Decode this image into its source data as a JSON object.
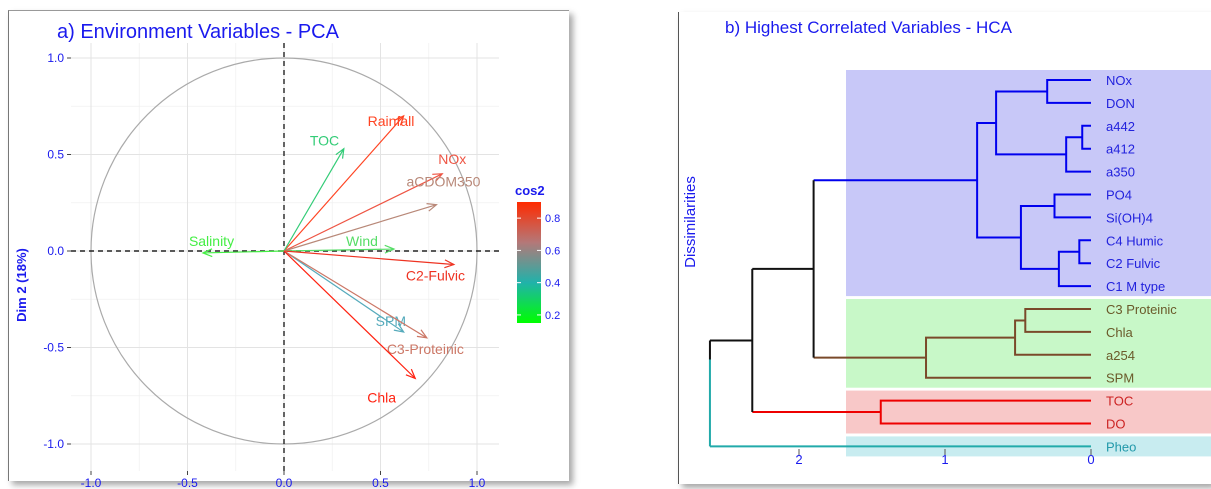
{
  "chart_data": [
    {
      "type": "scatter",
      "title": "a) Environment Variables - PCA",
      "ylabel": "Dim 2 (18%)",
      "xlabel": "",
      "xlim": [
        -1.0,
        1.0
      ],
      "ylim": [
        -1.0,
        1.0
      ],
      "x_ticks": [
        "-1.0",
        "-0.5",
        "0.0",
        "0.5",
        "1.0"
      ],
      "y_ticks": [
        "1.0",
        "0.5",
        "0.0",
        "-0.5",
        "-1.0"
      ],
      "grid": true,
      "legend": {
        "title": "cos2",
        "placement": "right",
        "ticks": [
          "0.8",
          "0.6",
          "0.4",
          "0.2"
        ],
        "range": [
          0.15,
          0.9
        ],
        "colors": [
          "#00ff00",
          "#20b2aa",
          "#b47878",
          "#ff2a00"
        ]
      },
      "vectors": [
        {
          "name": "Rainfall",
          "x": 0.62,
          "y": 0.7,
          "cos2": 0.88,
          "color": "#ff4422"
        },
        {
          "name": "TOC",
          "x": 0.31,
          "y": 0.53,
          "cos2": 0.38,
          "color": "#33cc77"
        },
        {
          "name": "NOx",
          "x": 0.82,
          "y": 0.4,
          "cos2": 0.84,
          "color": "#ee5544"
        },
        {
          "name": "aCDOM350",
          "x": 0.79,
          "y": 0.24,
          "cos2": 0.68,
          "color": "#b88878"
        },
        {
          "name": "Salinity",
          "x": -0.42,
          "y": -0.01,
          "cos2": 0.18,
          "color": "#44ee44"
        },
        {
          "name": "Wind",
          "x": 0.57,
          "y": 0.01,
          "cos2": 0.3,
          "color": "#55dd66"
        },
        {
          "name": "C2-Fulvic",
          "x": 0.88,
          "y": -0.07,
          "cos2": 0.86,
          "color": "#ee3322"
        },
        {
          "name": "SPM",
          "x": 0.62,
          "y": -0.42,
          "cos2": 0.55,
          "color": "#55aabb"
        },
        {
          "name": "C3-Proteinic",
          "x": 0.74,
          "y": -0.45,
          "cos2": 0.7,
          "color": "#cc7766"
        },
        {
          "name": "Chla",
          "x": 0.68,
          "y": -0.66,
          "cos2": 0.88,
          "color": "#ff2211"
        }
      ]
    },
    {
      "type": "dendrogram",
      "title": "b) Highest Correlated Variables - HCA",
      "ylabel": "Dissimilarities",
      "x_ticks": [
        "2",
        "1",
        "0"
      ],
      "leaves": [
        "NOx",
        "DON",
        "a442",
        "a412",
        "a350",
        "PO4",
        "Si(OH)4",
        "C4 Humic",
        "C2 Fulvic",
        "C1 M type",
        "C3 Proteinic",
        "Chla",
        "a254",
        "SPM",
        "TOC",
        "DO",
        "Pheo"
      ],
      "clusters": [
        {
          "members": [
            "NOx",
            "DON",
            "a442",
            "a412",
            "a350",
            "PO4",
            "Si(OH)4",
            "C4 Humic",
            "C2 Fulvic",
            "C1 M type"
          ],
          "line_color": "#0000ee",
          "box_color": "#c8c8f8",
          "text_color": "#2222dd"
        },
        {
          "members": [
            "C3 Proteinic",
            "Chla",
            "a254",
            "SPM"
          ],
          "line_color": "#7a4a2a",
          "box_color": "#c8f8c8",
          "text_color": "#6a5a2a"
        },
        {
          "members": [
            "TOC",
            "DO"
          ],
          "line_color": "#ee0000",
          "box_color": "#f8c8c8",
          "text_color": "#cc2222"
        },
        {
          "members": [
            "Pheo"
          ],
          "line_color": "#22aaaa",
          "box_color": "#c8ecf0",
          "text_color": "#2299aa"
        }
      ],
      "merges": [
        {
          "a": "NOx",
          "b": "DON",
          "height": 0.3
        },
        {
          "a": "a442",
          "b": "a412",
          "height": 0.06
        },
        {
          "a": "a442+a412",
          "b": "a350",
          "height": 0.17
        },
        {
          "a": "NOx+DON",
          "b": "a442+a412+a350",
          "height": 0.65
        },
        {
          "a": "C2 Fulvic",
          "b": "C4 Humic",
          "height": 0.08
        },
        {
          "a": "C4 Humic+C2 Fulvic",
          "b": "C1 M type",
          "height": 0.22
        },
        {
          "a": "PO4",
          "b": "Si(OH)4",
          "height": 0.25
        },
        {
          "a": "PO4+Si(OH)4",
          "b": "C4 Humic+C2 Fulvic+C1 M type",
          "height": 0.48
        },
        {
          "a": "NOx..a350",
          "b": "PO4..C1 M type",
          "height": 0.78
        },
        {
          "a": "C3 Proteinic",
          "b": "Chla",
          "height": 0.45
        },
        {
          "a": "C3 Proteinic+Chla",
          "b": "a254",
          "height": 0.52
        },
        {
          "a": "C3 Proteinic+Chla+a254",
          "b": "SPM",
          "height": 1.13
        },
        {
          "a": "blue cluster",
          "b": "brown cluster",
          "height": 1.9
        },
        {
          "a": "TOC",
          "b": "DO",
          "height": 1.44
        },
        {
          "a": "blue+brown",
          "b": "TOC+DO",
          "height": 2.32
        },
        {
          "a": "blue+brown+TOC+DO",
          "b": "Pheo",
          "height": 2.61
        }
      ]
    }
  ]
}
